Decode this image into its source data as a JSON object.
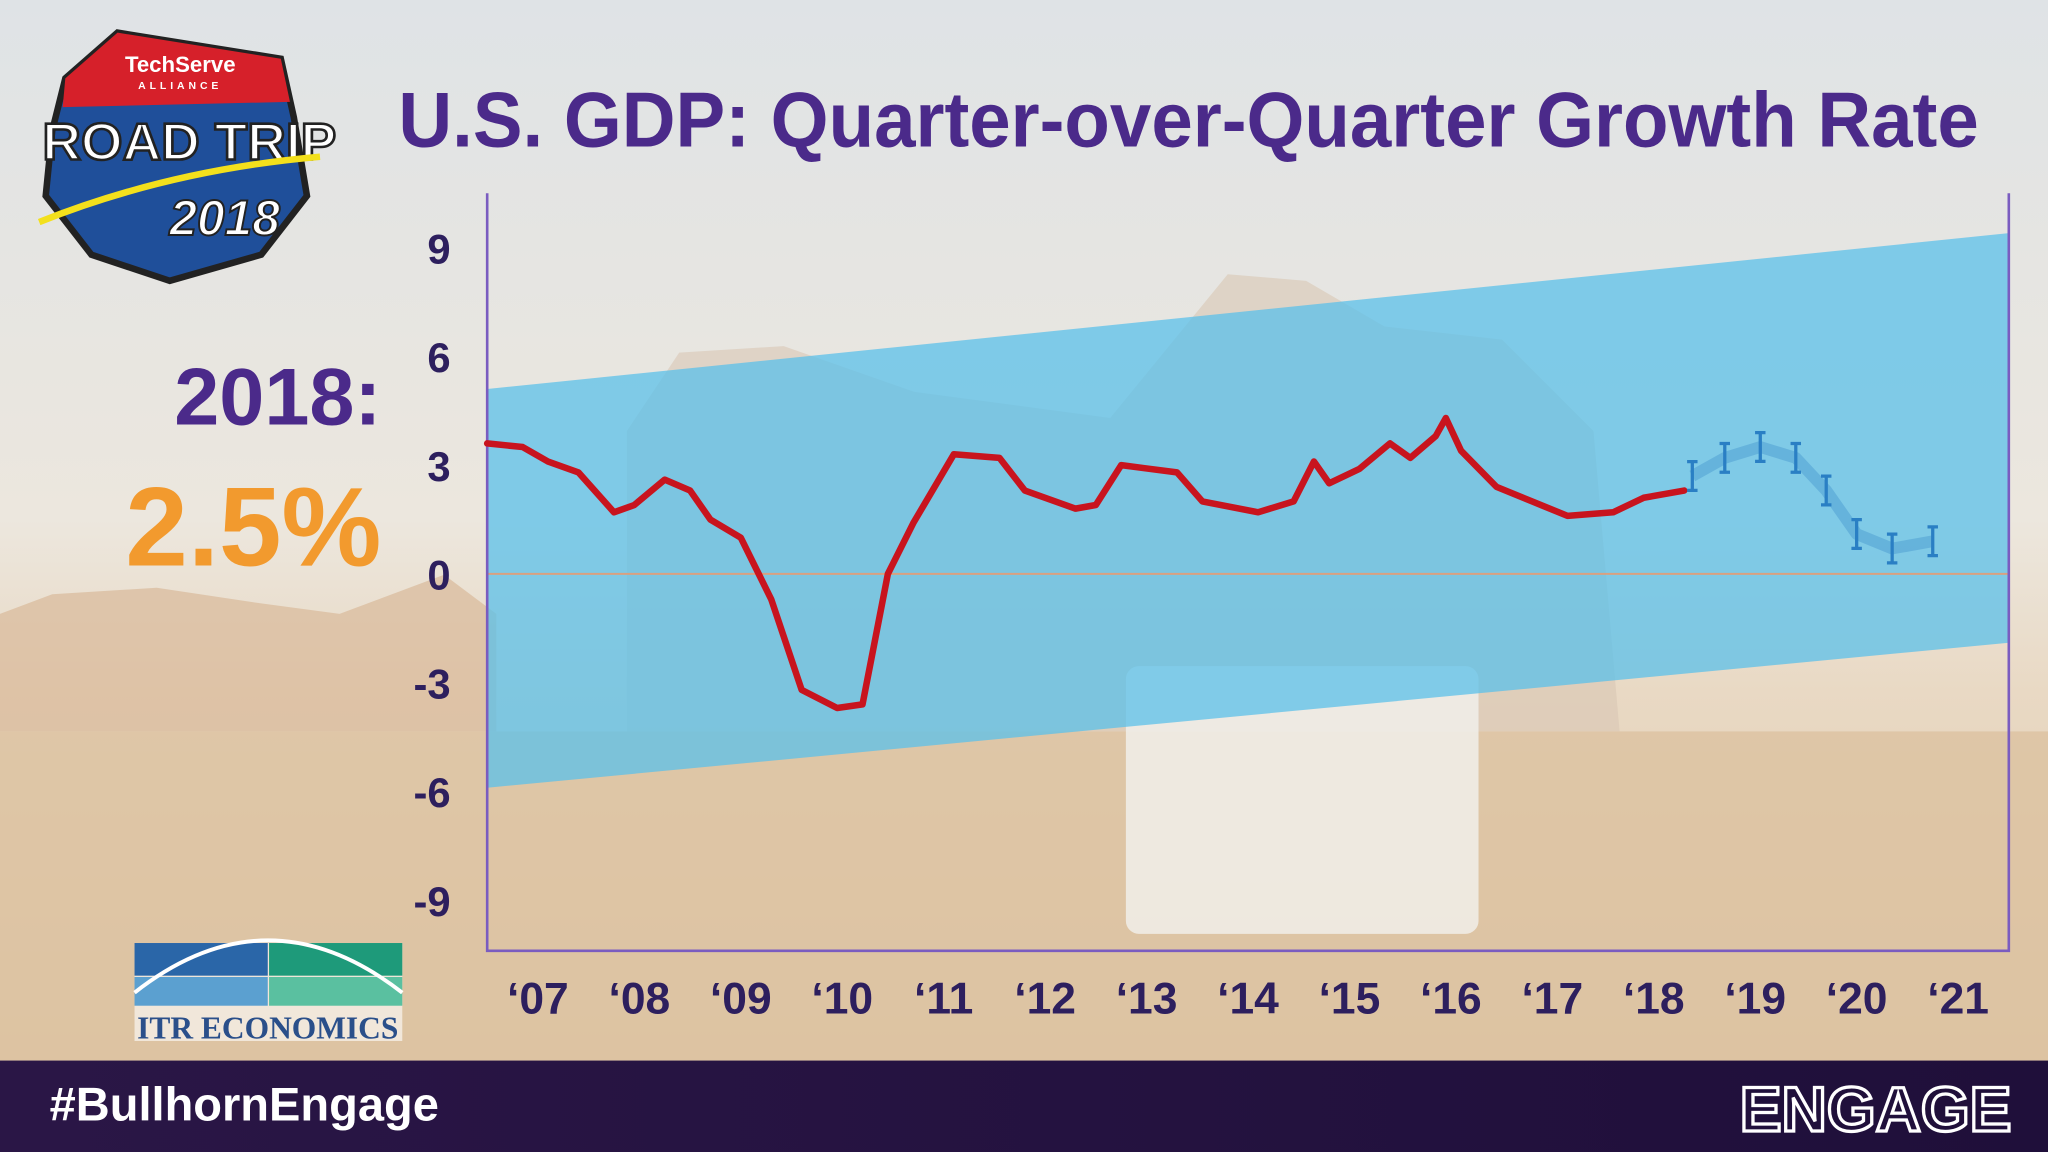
{
  "slide": {
    "logo_top": "TechServe",
    "logo_sub": "ALLIANCE",
    "logo_main": "ROAD TRIP",
    "logo_year": "2018",
    "callout_label": "2018:",
    "callout_value": "2.5%",
    "itr_logo": "ITR ECONOMICS",
    "hashtag": "#BullhornEngage",
    "brand": "ENGAGE"
  },
  "chart_data": {
    "type": "line",
    "title": "U.S. GDP: Quarter-over-Quarter Growth Rate",
    "xlim": [
      2006.5,
      2021.5
    ],
    "xticks": [
      {
        "value": 2007,
        "label": "‘07"
      },
      {
        "value": 2008,
        "label": "‘08"
      },
      {
        "value": 2009,
        "label": "‘09"
      },
      {
        "value": 2010,
        "label": "‘10"
      },
      {
        "value": 2011,
        "label": "‘11"
      },
      {
        "value": 2012,
        "label": "‘12"
      },
      {
        "value": 2013,
        "label": "‘13"
      },
      {
        "value": 2014,
        "label": "‘14"
      },
      {
        "value": 2015,
        "label": "‘15"
      },
      {
        "value": 2016,
        "label": "‘16"
      },
      {
        "value": 2017,
        "label": "‘17"
      },
      {
        "value": 2018,
        "label": "‘18"
      },
      {
        "value": 2019,
        "label": "‘19"
      },
      {
        "value": 2020,
        "label": "‘20"
      },
      {
        "value": 2021,
        "label": "‘21"
      }
    ],
    "ylim": [
      -10.4,
      10.5
    ],
    "yticks": [
      -9,
      -6,
      -3,
      0,
      3,
      6,
      9
    ],
    "band": {
      "x": [
        2006.5,
        2021.5
      ],
      "upper": [
        5.1,
        9.4
      ],
      "lower": [
        -5.9,
        -1.9
      ],
      "color": "#5bc0ea"
    },
    "series": [
      {
        "color": "#c8141e",
        "x": [
          2006.5,
          2006.85,
          2007.1,
          2007.4,
          2007.75,
          2007.95,
          2008.25,
          2008.5,
          2008.7,
          2009.0,
          2009.3,
          2009.6,
          2009.95,
          2010.2,
          2010.45,
          2010.7,
          2011.1,
          2011.55,
          2011.8,
          2012.3,
          2012.5,
          2012.75,
          2013.3,
          2013.55,
          2014.1,
          2014.45,
          2014.65,
          2014.8,
          2015.1,
          2015.4,
          2015.6,
          2015.85,
          2015.95,
          2016.1,
          2016.45,
          2016.8,
          2017.15,
          2017.6,
          2017.9,
          2018.3
        ],
        "values": [
          3.6,
          3.5,
          3.1,
          2.8,
          1.7,
          1.9,
          2.6,
          2.3,
          1.5,
          1.0,
          -0.7,
          -3.2,
          -3.7,
          -3.6,
          0.0,
          1.4,
          3.3,
          3.2,
          2.3,
          1.8,
          1.9,
          3.0,
          2.8,
          2.0,
          1.7,
          2.0,
          3.1,
          2.5,
          2.9,
          3.6,
          3.2,
          3.8,
          4.3,
          3.4,
          2.4,
          2.0,
          1.6,
          1.7,
          2.1,
          2.3
        ]
      },
      {
        "color": "#2a7fc4",
        "x": [
          2018.38,
          2018.7,
          2019.05,
          2019.4,
          2019.7,
          2020.0,
          2020.35,
          2020.75
        ],
        "values": [
          2.7,
          3.2,
          3.5,
          3.2,
          2.3,
          1.1,
          0.7,
          0.9
        ]
      }
    ]
  }
}
